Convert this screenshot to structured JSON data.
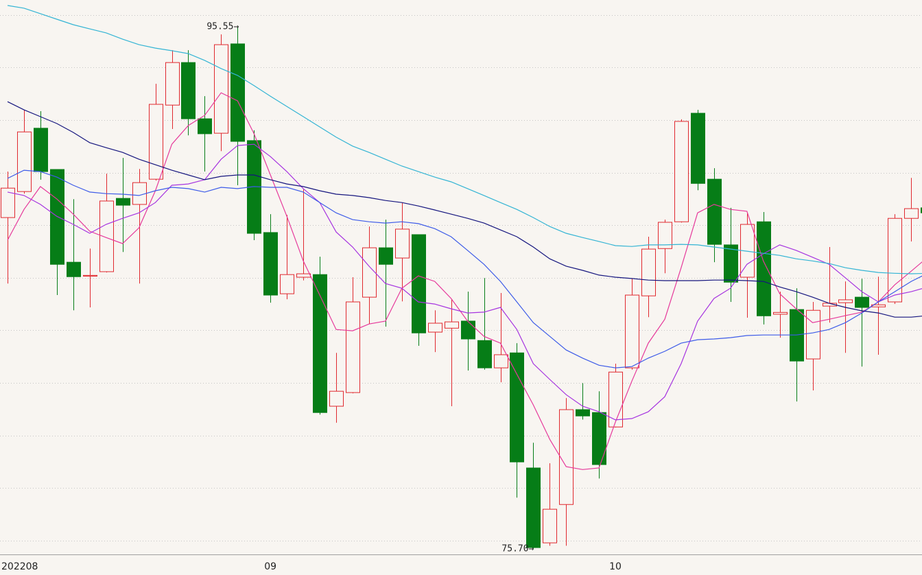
{
  "chart_data": {
    "type": "candlestick",
    "categories": [
      "202208",
      null,
      null,
      null,
      null,
      null,
      null,
      null,
      null,
      null,
      null,
      null,
      null,
      null,
      null,
      null,
      "09",
      null,
      null,
      null,
      null,
      null,
      null,
      null,
      null,
      null,
      null,
      null,
      null,
      null,
      null,
      null,
      null,
      null,
      null,
      null,
      null,
      "10",
      null,
      null,
      null,
      null,
      null,
      null,
      null,
      null,
      null,
      null,
      null,
      null,
      null,
      null,
      null,
      null,
      null,
      null,
      null
    ],
    "open": [
      88.29,
      89.28,
      91.69,
      90.12,
      86.59,
      86.06,
      86.23,
      89.02,
      88.79,
      89.75,
      92.57,
      94.19,
      92.05,
      91.5,
      94.9,
      91.22,
      87.72,
      85.39,
      86.02,
      86.12,
      81.11,
      81.63,
      85.26,
      87.14,
      86.75,
      87.64,
      83.93,
      84.08,
      84.35,
      83.61,
      82.57,
      83.14,
      78.76,
      75.91,
      77.37,
      80.98,
      80.87,
      80.32,
      82.57,
      85.31,
      87.11,
      88.13,
      92.26,
      89.75,
      87.25,
      86.02,
      88.13,
      84.61,
      84.79,
      82.91,
      84.92,
      85.05,
      85.26,
      84.89,
      85.08,
      88.26,
      88.66
    ],
    "high": [
      90.04,
      92.39,
      92.34,
      90.12,
      88.99,
      87.11,
      89.96,
      90.56,
      90.14,
      93.38,
      94.66,
      94.66,
      92.91,
      95.26,
      95.55,
      91.61,
      88.42,
      88.39,
      89.36,
      86.8,
      83.14,
      86.02,
      87.95,
      88.21,
      88.84,
      87.64,
      84.76,
      85.18,
      85.47,
      85.99,
      85.42,
      83.51,
      79.72,
      78.94,
      81.42,
      81.99,
      81.68,
      82.73,
      85.96,
      87.56,
      88.21,
      92.03,
      92.39,
      90.17,
      88.66,
      88.47,
      88.5,
      85.47,
      85.6,
      85.08,
      87.17,
      85.86,
      85.96,
      86.04,
      88.42,
      89.8,
      88.8
    ],
    "low": [
      85.78,
      89.2,
      89.73,
      85.34,
      84.76,
      84.87,
      86.2,
      86.98,
      85.78,
      89.7,
      91.66,
      91.42,
      90.04,
      90.82,
      89.52,
      87.43,
      85.05,
      85.18,
      85.9,
      80.79,
      80.48,
      81.6,
      84.24,
      84.14,
      85.1,
      83.41,
      83.17,
      81.11,
      82.47,
      82.5,
      82.02,
      77.63,
      75.7,
      75.8,
      75.8,
      80.6,
      78.36,
      80.3,
      82.5,
      84.5,
      86.17,
      88.1,
      89.33,
      86.59,
      85.08,
      84.48,
      84.22,
      83.72,
      81.29,
      81.71,
      84.29,
      83.14,
      82.62,
      83.07,
      85.0,
      87.38,
      88.3
    ],
    "close": [
      89.41,
      91.55,
      90.04,
      86.51,
      86.04,
      86.09,
      88.92,
      88.76,
      89.62,
      92.6,
      94.19,
      92.05,
      91.48,
      94.87,
      91.19,
      87.69,
      85.34,
      86.12,
      86.15,
      80.87,
      81.68,
      85.08,
      87.14,
      86.51,
      87.85,
      83.9,
      84.27,
      84.32,
      83.67,
      82.57,
      83.07,
      78.99,
      75.73,
      77.19,
      80.98,
      80.74,
      78.89,
      82.41,
      85.34,
      87.09,
      88.11,
      91.95,
      89.59,
      87.27,
      85.83,
      88.03,
      84.55,
      84.68,
      82.83,
      84.76,
      85.03,
      85.16,
      84.87,
      84.97,
      88.26,
      88.63,
      88.47
    ],
    "up_color": "#e0282e",
    "down_color": "#067d17",
    "lines": [
      {
        "color": "#e6399b",
        "values": [
          87.43,
          88.6,
          89.47,
          89.0,
          88.42,
          87.77,
          87.53,
          87.3,
          87.9,
          89.31,
          91.08,
          91.79,
          92.18,
          93.04,
          92.73,
          91.48,
          89.91,
          88.34,
          86.64,
          85.34,
          84.03,
          83.98,
          84.24,
          84.35,
          85.6,
          86.07,
          85.86,
          85.21,
          84.35,
          83.77,
          83.51,
          82.33,
          81.16,
          79.85,
          78.81,
          78.7,
          78.76,
          80.51,
          82.07,
          83.51,
          84.42,
          86.38,
          88.47,
          88.79,
          88.6,
          88.53,
          86.64,
          85.39,
          84.82,
          84.29,
          84.42,
          84.56,
          84.69,
          85.08,
          85.73,
          86.25,
          86.78
        ]
      },
      {
        "color": "#a634e0",
        "values": [
          89.26,
          89.13,
          88.79,
          88.34,
          88.03,
          87.69,
          88.03,
          88.26,
          88.47,
          88.86,
          89.52,
          89.57,
          89.73,
          90.51,
          91.03,
          91.08,
          90.61,
          90.04,
          89.39,
          88.86,
          87.74,
          87.17,
          86.44,
          85.78,
          85.6,
          85.08,
          85.0,
          84.82,
          84.66,
          84.69,
          84.87,
          84.03,
          82.73,
          82.13,
          81.55,
          81.11,
          80.9,
          80.59,
          80.64,
          80.9,
          81.47,
          82.73,
          84.35,
          85.21,
          85.6,
          86.51,
          86.91,
          87.25,
          87.04,
          86.78,
          86.51,
          85.99,
          85.47,
          85.08,
          85.34,
          85.47,
          85.65
        ]
      },
      {
        "color": "#3d5be8",
        "values": [
          89.78,
          90.09,
          90.04,
          89.83,
          89.52,
          89.26,
          89.2,
          89.18,
          89.13,
          89.31,
          89.44,
          89.39,
          89.26,
          89.44,
          89.39,
          89.47,
          89.44,
          89.44,
          89.26,
          88.86,
          88.47,
          88.21,
          88.13,
          88.08,
          88.13,
          88.06,
          87.87,
          87.56,
          87.04,
          86.51,
          85.86,
          85.08,
          84.29,
          83.77,
          83.25,
          82.94,
          82.67,
          82.57,
          82.62,
          82.94,
          83.2,
          83.51,
          83.64,
          83.67,
          83.72,
          83.8,
          83.82,
          83.82,
          83.82,
          83.9,
          84.03,
          84.29,
          84.66,
          85.08,
          85.47,
          85.86,
          86.17
        ]
      },
      {
        "color": "#14147e",
        "values": [
          92.7,
          92.39,
          92.13,
          91.87,
          91.53,
          91.14,
          90.95,
          90.77,
          90.51,
          90.3,
          90.09,
          89.91,
          89.73,
          89.86,
          89.91,
          89.91,
          89.73,
          89.57,
          89.47,
          89.31,
          89.18,
          89.13,
          89.05,
          88.94,
          88.86,
          88.73,
          88.58,
          88.42,
          88.26,
          88.08,
          87.82,
          87.56,
          87.17,
          86.72,
          86.44,
          86.28,
          86.1,
          86.02,
          85.97,
          85.91,
          85.89,
          85.89,
          85.89,
          85.91,
          85.91,
          85.89,
          85.86,
          85.65,
          85.47,
          85.26,
          85.03,
          84.87,
          84.74,
          84.66,
          84.5,
          84.5,
          84.56
        ]
      },
      {
        "color": "#33b4d4",
        "values": [
          96.36,
          96.26,
          96.05,
          95.84,
          95.63,
          95.47,
          95.32,
          95.08,
          94.87,
          94.74,
          94.64,
          94.53,
          94.27,
          93.96,
          93.7,
          93.31,
          92.91,
          92.52,
          92.13,
          91.74,
          91.35,
          91.01,
          90.77,
          90.51,
          90.25,
          90.04,
          89.83,
          89.65,
          89.39,
          89.13,
          88.86,
          88.6,
          88.29,
          87.95,
          87.69,
          87.53,
          87.38,
          87.22,
          87.19,
          87.25,
          87.25,
          87.27,
          87.25,
          87.17,
          87.09,
          87.01,
          86.93,
          86.85,
          86.72,
          86.64,
          86.54,
          86.38,
          86.28,
          86.2,
          86.17,
          86.15,
          86.17
        ]
      }
    ],
    "ylim": [
      75.47,
      96.57
    ],
    "grid_lines": [
      76,
      78,
      80,
      82,
      84,
      86,
      88,
      90,
      92,
      94,
      96
    ],
    "high_label": "95.55→",
    "low_label": "75.70→"
  }
}
